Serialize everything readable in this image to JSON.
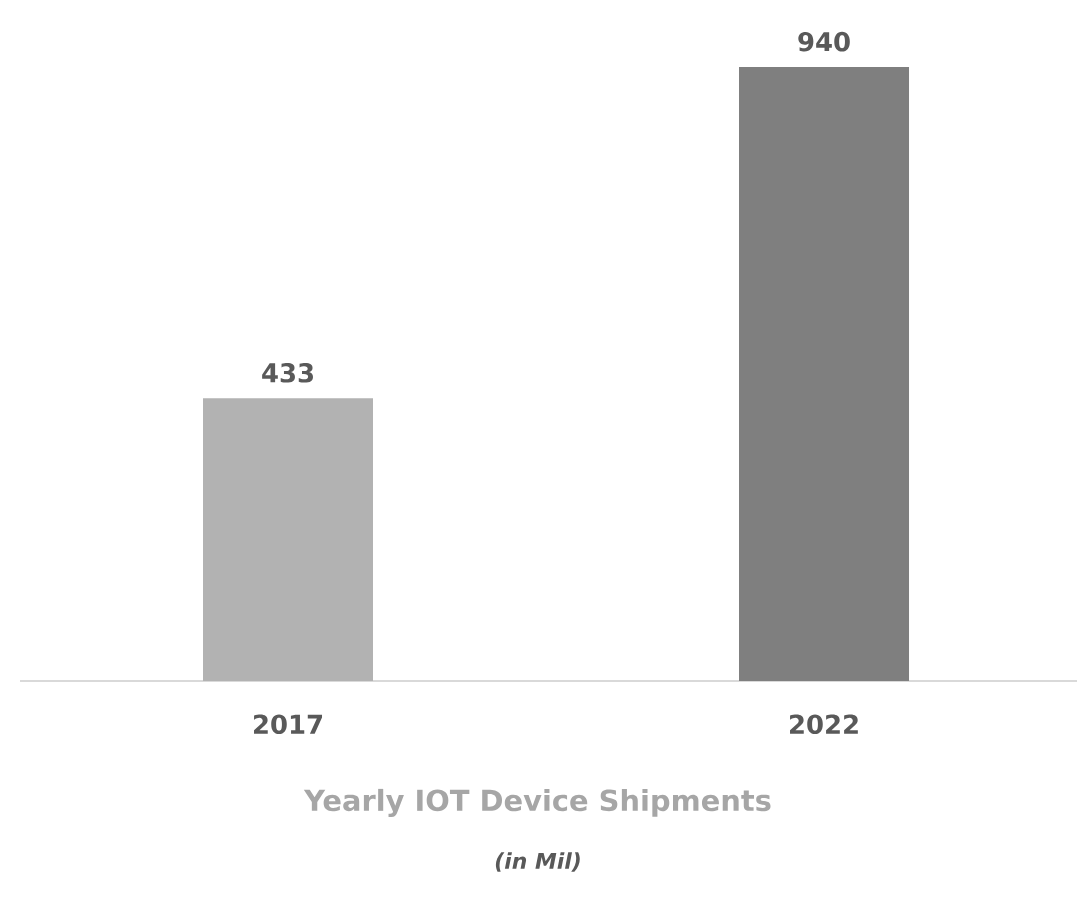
{
  "chart_data": {
    "type": "bar",
    "title": "Yearly IOT Device Shipments",
    "subtitle": "(in Mil)",
    "categories": [
      "2017",
      "2022"
    ],
    "values": [
      433,
      940
    ],
    "colors": [
      "#b2b2b2",
      "#7f7f7f"
    ],
    "data_labels": true
  }
}
